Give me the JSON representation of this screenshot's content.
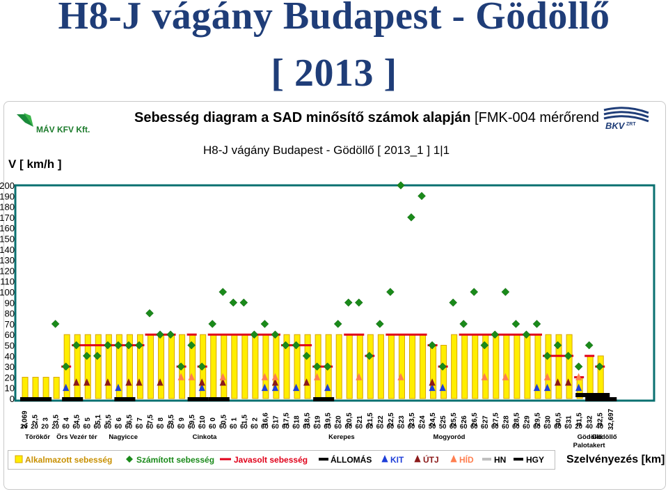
{
  "page": {
    "main_title_line1": "H8-J vágány   Budapest - Gödöllő",
    "main_title_line2": "[ 2013 ]",
    "subtitle_bold": "Sebesség diagram a SAD minősítő számok alapján",
    "subtitle_rest": " [FMK-004 mérőrend",
    "mav_logo_text": "MÁV KFV Kft.",
    "bkv_logo_text": "BKV",
    "bkv_logo_sup": "ZRT",
    "colors": {
      "title": "#1f3d78",
      "bar_fill": "#ffee00",
      "bar_edge": "#d9a400",
      "calc": "#1a8a1a",
      "recommended": "#e0001a",
      "station": "#000000",
      "kit": "#1f3fd8",
      "utj": "#8b1a1a",
      "hid": "#ff7f50",
      "hn": "#bfbfbf",
      "hgy": "#000000",
      "plot_border": "#0a7070"
    }
  },
  "chart_data": {
    "type": "bar",
    "title": "H8-J vágány  Budapest - Gödöllő  [ 2013_1 ]  1|1",
    "xlabel": "Szelvényezés [km]",
    "ylabel": "V [ km/h ]",
    "ylim": [
      0,
      200
    ],
    "yticks": [
      0,
      10,
      20,
      30,
      40,
      50,
      60,
      70,
      80,
      90,
      100,
      110,
      120,
      130,
      140,
      150,
      160,
      170,
      180,
      190,
      200
    ],
    "grid": false,
    "legend_position": "bottom",
    "categories": [
      "2,069",
      "2,5",
      "3",
      "3,5",
      "4",
      "4,5",
      "5",
      "5,1",
      "5,5",
      "6",
      "6,5",
      "7",
      "7,5",
      "8",
      "8,5",
      "9",
      "9,5",
      "10",
      "0",
      "0,5",
      "1",
      "1,5",
      "2",
      "16,6",
      "17",
      "17,5",
      "18",
      "18,5",
      "19",
      "19,5",
      "20",
      "20,5",
      "21",
      "21,5",
      "22",
      "22,5",
      "23",
      "23,5",
      "24",
      "24,5",
      "25",
      "25,5",
      "26",
      "26,5",
      "27",
      "27,5",
      "28",
      "28,5",
      "29",
      "29,5",
      "30",
      "30,5",
      "31",
      "31,5",
      "32",
      "32,5",
      "32,697"
    ],
    "series": [
      {
        "name": "Alkalmazott sebesség",
        "type": "bar",
        "values": [
          20,
          20,
          20,
          20,
          60,
          60,
          60,
          60,
          60,
          60,
          60,
          60,
          60,
          60,
          60,
          60,
          60,
          60,
          60,
          60,
          60,
          60,
          60,
          60,
          60,
          60,
          60,
          60,
          60,
          60,
          60,
          60,
          60,
          60,
          60,
          60,
          60,
          60,
          60,
          50,
          50,
          60,
          60,
          60,
          60,
          60,
          60,
          60,
          60,
          60,
          60,
          60,
          60,
          20,
          40,
          40,
          null
        ]
      },
      {
        "name": "Számított sebesség",
        "type": "scatter",
        "values": [
          null,
          null,
          null,
          70,
          30,
          50,
          40,
          40,
          50,
          50,
          50,
          50,
          80,
          60,
          60,
          30,
          50,
          30,
          70,
          100,
          90,
          90,
          60,
          70,
          60,
          50,
          50,
          40,
          30,
          30,
          70,
          90,
          90,
          40,
          70,
          100,
          200,
          170,
          190,
          50,
          30,
          90,
          70,
          100,
          50,
          60,
          100,
          70,
          60,
          70,
          40,
          50,
          40,
          30,
          50,
          30,
          null
        ]
      },
      {
        "name": "Javasolt sebesség",
        "type": "step",
        "segments": [
          {
            "from": "4",
            "to": "4",
            "v": 30
          },
          {
            "from": "4,5",
            "to": "7",
            "v": 50
          },
          {
            "from": "7,5",
            "to": "8,5",
            "v": 60
          },
          {
            "from": "9",
            "to": "9",
            "v": 30
          },
          {
            "from": "9,5",
            "to": "9,5",
            "v": 60
          },
          {
            "from": "10",
            "to": "10",
            "v": 30
          },
          {
            "from": "0",
            "to": "17",
            "v": 60
          },
          {
            "from": "17,5",
            "to": "18,5",
            "v": 50
          },
          {
            "from": "19",
            "to": "19,5",
            "v": 30
          },
          {
            "from": "20,5",
            "to": "21",
            "v": 60
          },
          {
            "from": "21,5",
            "to": "21,5",
            "v": 40
          },
          {
            "from": "22,5",
            "to": "24",
            "v": 60
          },
          {
            "from": "24,5",
            "to": "24,5",
            "v": 50
          },
          {
            "from": "25",
            "to": "25",
            "v": 30
          },
          {
            "from": "26",
            "to": "29,5",
            "v": 60
          },
          {
            "from": "30",
            "to": "31",
            "v": 40
          },
          {
            "from": "31,5",
            "to": "31,5",
            "v": 20
          },
          {
            "from": "32",
            "to": "32",
            "v": 40
          },
          {
            "from": "32,5",
            "to": "32,5",
            "v": 30
          }
        ]
      },
      {
        "name": "ÁLLOMÁS",
        "type": "segment",
        "v": 0,
        "segments": [
          {
            "from": "2,069",
            "to": "3"
          },
          {
            "from": "4",
            "to": "4,5"
          },
          {
            "from": "6",
            "to": "6,5"
          },
          {
            "from": "9,5",
            "to": "10"
          },
          {
            "from": "0",
            "to": "0,5"
          },
          {
            "from": "19",
            "to": "19,5"
          },
          {
            "from": "32",
            "to": "32,697"
          }
        ]
      },
      {
        "name": "KIT",
        "type": "marker",
        "v": 10,
        "at": [
          "4",
          "6",
          "10",
          "16,6",
          "17",
          "18",
          "19,5",
          "24,5",
          "25",
          "29,5",
          "30",
          "31,5"
        ]
      },
      {
        "name": "ÚTJ",
        "type": "marker",
        "v": 15,
        "at": [
          "4,5",
          "5",
          "5,5",
          "6,5",
          "7",
          "8",
          "10",
          "0,5",
          "17",
          "18,5",
          "24,5",
          "30,5",
          "31"
        ]
      },
      {
        "name": "HÍD",
        "type": "marker",
        "v": 20,
        "at": [
          "9",
          "9,5",
          "0,5",
          "16,6",
          "17",
          "19",
          "21",
          "23",
          "27",
          "28",
          "30",
          "31,5"
        ]
      },
      {
        "name": "HN",
        "type": "segment",
        "v": 0,
        "segments": []
      },
      {
        "name": "HGY",
        "type": "segment",
        "v": 0,
        "segments": [
          {
            "from": "31,5",
            "to": "32,697"
          }
        ]
      }
    ],
    "speed_row": [
      "20",
      "20",
      "20",
      "20",
      "60",
      "60",
      "60",
      "60",
      "60",
      "60",
      "60",
      "60",
      "60",
      "60",
      "60",
      "60",
      "60",
      "60",
      "60",
      "60",
      "60",
      "60",
      "60",
      "60",
      "60",
      "60",
      "60",
      "60",
      "60",
      "60",
      "60",
      "60",
      "60",
      "60",
      "60",
      "60",
      "60",
      "60",
      "60",
      "50",
      "50",
      "60",
      "60",
      "60",
      "60",
      "60",
      "60",
      "60",
      "60",
      "60",
      "60",
      "60",
      "60",
      "20",
      "40",
      "40"
    ],
    "stations": [
      {
        "name": "Törökőr",
        "at": "2,069"
      },
      {
        "name": "Örs Vezér tér",
        "at": "3,5"
      },
      {
        "name": "Nagyicce",
        "at": "5,5"
      },
      {
        "name": "Cinkota",
        "at": "9,5"
      },
      {
        "name": "Kerepes",
        "at": "19,5"
      },
      {
        "name": "Mogyoród",
        "at": "24,5"
      },
      {
        "name": "Gödöllő",
        "at": "31,5"
      },
      {
        "name": "Gödöllő",
        "at": "32"
      },
      {
        "name": "Palotakert",
        "at": "31,5"
      }
    ],
    "legend": [
      "Alkalmazott sebesség",
      "Számított sebesség",
      "Javasolt sebesség",
      "ÁLLOMÁS",
      "KIT",
      "ÚTJ",
      "HÍD",
      "HN",
      "HGY"
    ]
  }
}
